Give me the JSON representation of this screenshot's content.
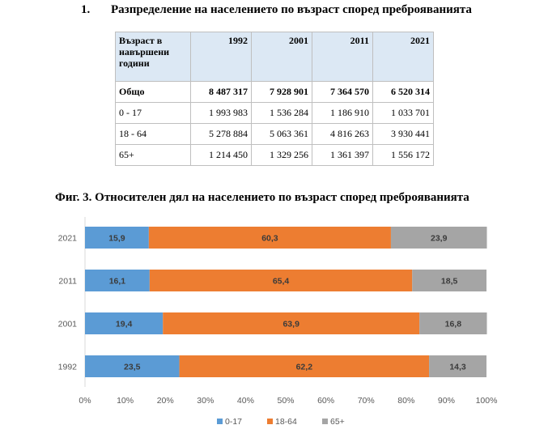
{
  "heading": {
    "number": "1.",
    "text": "Разпределение на населението по възраст според преброяванията"
  },
  "table": {
    "corner": "Възраст в\nнавършени\nгодини",
    "years": [
      "1992",
      "2001",
      "2011",
      "2021"
    ],
    "rows": [
      {
        "label": "Общо",
        "values": [
          "8 487 317",
          "7 928 901",
          "7 364 570",
          "6 520 314"
        ],
        "bold": true
      },
      {
        "label": "0 - 17",
        "values": [
          "1 993 983",
          "1 536 284",
          "1 186 910",
          "1 033 701"
        ]
      },
      {
        "label": "18 - 64",
        "values": [
          "5 278 884",
          "5 063 361",
          "4 816 263",
          "3 930 441"
        ]
      },
      {
        "label": "65+",
        "values": [
          "1 214 450",
          "1 329 256",
          "1 361 397",
          "1 556 172"
        ]
      }
    ]
  },
  "figure_title": "Фиг. 3. Относителен дял на населението по възраст според преброяванията",
  "chart_data": {
    "type": "bar",
    "orientation": "horizontal",
    "stacked": "percent",
    "categories": [
      "2021",
      "2011",
      "2001",
      "1992"
    ],
    "series": [
      {
        "name": "0-17",
        "color": "#5b9bd5",
        "values": [
          15.9,
          16.1,
          19.4,
          23.5
        ],
        "labels": [
          "15,9",
          "16,1",
          "19,4",
          "23,5"
        ]
      },
      {
        "name": "18-64",
        "color": "#ed7d31",
        "values": [
          60.3,
          65.4,
          63.9,
          62.2
        ],
        "labels": [
          "60,3",
          "65,4",
          "63,9",
          "62,2"
        ]
      },
      {
        "name": "65+",
        "color": "#a5a5a5",
        "values": [
          23.9,
          18.5,
          16.8,
          14.3
        ],
        "labels": [
          "23,9",
          "18,5",
          "16,8",
          "14,3"
        ]
      }
    ],
    "xlim": [
      0,
      100
    ],
    "x_ticks": [
      "0%",
      "10%",
      "20%",
      "30%",
      "40%",
      "50%",
      "60%",
      "70%",
      "80%",
      "90%",
      "100%"
    ],
    "legend_position": "bottom",
    "grid": false
  }
}
